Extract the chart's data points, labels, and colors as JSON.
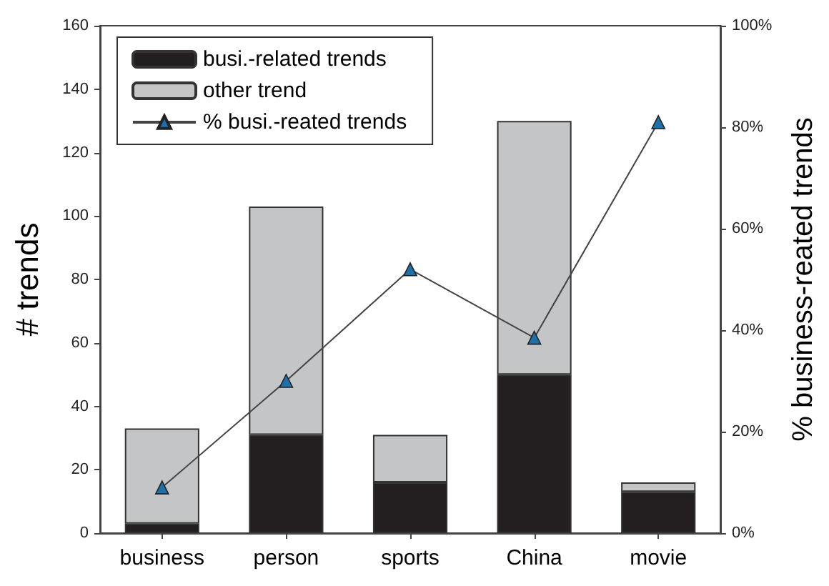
{
  "chart_data": {
    "type": "bar",
    "stacked": true,
    "categories": [
      "business",
      "person",
      "sports",
      "China",
      "movie"
    ],
    "ylabel": "# trends",
    "y2label": "% business-reated trends",
    "series": [
      {
        "name": "busi.-related trends",
        "color": "#231f20",
        "values": [
          3,
          31,
          16,
          50,
          13
        ]
      },
      {
        "name": "other trend",
        "color": "#c4c5c7",
        "values": [
          30,
          72,
          15,
          80,
          3
        ]
      },
      {
        "name": "% busi.-reated trends",
        "type": "line",
        "axis": "y2",
        "color": "#1f6fa8",
        "marker": "triangle",
        "values": [
          9,
          30,
          52,
          38.5,
          81
        ]
      }
    ],
    "ylim": [
      0,
      160
    ],
    "yticks": [
      0,
      20,
      40,
      60,
      80,
      100,
      120,
      140,
      160
    ],
    "y2lim": [
      0,
      100
    ],
    "y2ticks": [
      {
        "value": 0,
        "label": "0%"
      },
      {
        "value": 20,
        "label": "20%"
      },
      {
        "value": 40,
        "label": "40%"
      },
      {
        "value": 60,
        "label": "60%"
      },
      {
        "value": 80,
        "label": "80%"
      },
      {
        "value": 100,
        "label": "100%"
      }
    ],
    "grid": false,
    "legend": "top left"
  }
}
